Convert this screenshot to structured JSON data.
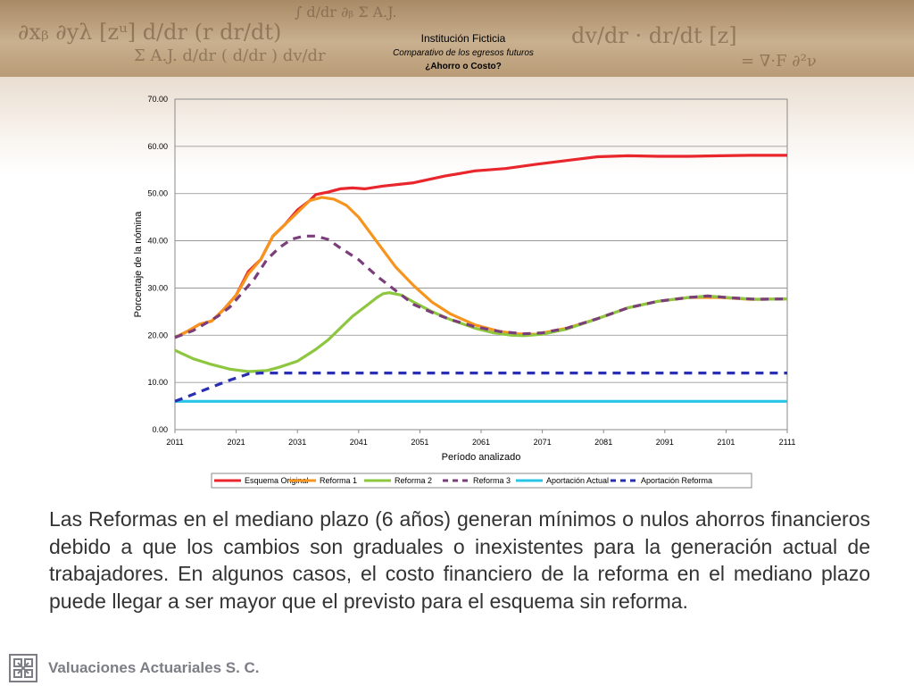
{
  "slide": {
    "paragraph": "Las Reformas en el mediano plazo (6 años) generan mínimos o nulos ahorros financieros debido a que los cambios son graduales o inexistentes para la generación actual de trabajadores. En algunos casos, el costo financiero de la reforma en el mediano plazo puede llegar a ser mayor que el previsto para el esquema sin reforma.",
    "footer_company": "Valuaciones Actuariales S. C.",
    "banner_formulas": [
      "∂xᵦ ∂yλ [zᵘ]  d/dr (r dr/dt)",
      "Σ A.J.  d/dr ( d/dr ) dv/dr",
      "∫ d/dr  ∂ᵦ  Σ A.J.",
      "dv/dr · dr/dt [z]",
      "= ∇·F  ∂²ν"
    ]
  },
  "chart_data": {
    "type": "line",
    "title": "Institución Ficticia",
    "subtitle": "Comparativo de los egresos futuros",
    "subtitle2": "¿Ahorro o Costo?",
    "xlabel": "Período analizado",
    "ylabel": "Porcentaje de la nómina",
    "xlim": [
      2011,
      2111
    ],
    "ylim": [
      0,
      70
    ],
    "x_ticks": [
      "2011",
      "2021",
      "2031",
      "2041",
      "2051",
      "2061",
      "2071",
      "2081",
      "2091",
      "2101",
      "2111"
    ],
    "y_ticks": [
      "0.00",
      "10.00",
      "20.00",
      "30.00",
      "40.00",
      "50.00",
      "60.00",
      "70.00"
    ],
    "grid": true,
    "legend_position": "bottom",
    "series": [
      {
        "name": "Esquema Original",
        "color": "#e8262b",
        "dash": false,
        "points": [
          [
            2011,
            19.5
          ],
          [
            2013,
            20.8
          ],
          [
            2015,
            22.3
          ],
          [
            2017,
            23.0
          ],
          [
            2019,
            25.5
          ],
          [
            2021,
            28.5
          ],
          [
            2023,
            33.5
          ],
          [
            2025,
            36.0
          ],
          [
            2026,
            38.5
          ],
          [
            2027,
            41.0
          ],
          [
            2029,
            43.5
          ],
          [
            2031,
            46.5
          ],
          [
            2033,
            48.5
          ],
          [
            2034,
            49.8
          ],
          [
            2036,
            50.3
          ],
          [
            2038,
            51.0
          ],
          [
            2040,
            51.2
          ],
          [
            2042,
            51.0
          ],
          [
            2045,
            51.6
          ],
          [
            2050,
            52.3
          ],
          [
            2055,
            53.7
          ],
          [
            2060,
            54.8
          ],
          [
            2065,
            55.3
          ],
          [
            2070,
            56.2
          ],
          [
            2075,
            57.0
          ],
          [
            2080,
            57.8
          ],
          [
            2085,
            58.0
          ],
          [
            2090,
            57.9
          ],
          [
            2095,
            57.9
          ],
          [
            2100,
            58.0
          ],
          [
            2105,
            58.1
          ],
          [
            2111,
            58.1
          ]
        ]
      },
      {
        "name": "Reforma 1",
        "color": "#f7941d",
        "dash": false,
        "points": [
          [
            2011,
            19.5
          ],
          [
            2013,
            20.8
          ],
          [
            2015,
            22.3
          ],
          [
            2017,
            23.0
          ],
          [
            2019,
            25.5
          ],
          [
            2021,
            28.5
          ],
          [
            2023,
            33.0
          ],
          [
            2025,
            36.0
          ],
          [
            2027,
            41.0
          ],
          [
            2029,
            43.5
          ],
          [
            2031,
            46.0
          ],
          [
            2033,
            48.5
          ],
          [
            2035,
            49.2
          ],
          [
            2037,
            48.8
          ],
          [
            2039,
            47.5
          ],
          [
            2041,
            45.0
          ],
          [
            2043,
            41.5
          ],
          [
            2045,
            38.0
          ],
          [
            2047,
            34.5
          ],
          [
            2050,
            30.5
          ],
          [
            2053,
            27.0
          ],
          [
            2056,
            24.5
          ],
          [
            2060,
            22.2
          ],
          [
            2064,
            20.8
          ],
          [
            2067,
            20.3
          ],
          [
            2070,
            20.2
          ],
          [
            2075,
            21.5
          ],
          [
            2080,
            23.5
          ],
          [
            2085,
            25.8
          ],
          [
            2090,
            27.2
          ],
          [
            2095,
            28.0
          ],
          [
            2100,
            28.0
          ],
          [
            2105,
            27.6
          ],
          [
            2111,
            27.7
          ]
        ]
      },
      {
        "name": "Reforma 2",
        "color": "#8dc63f",
        "dash": false,
        "points": [
          [
            2011,
            16.8
          ],
          [
            2014,
            15.0
          ],
          [
            2017,
            13.8
          ],
          [
            2020,
            12.8
          ],
          [
            2023,
            12.3
          ],
          [
            2026,
            12.5
          ],
          [
            2028,
            13.2
          ],
          [
            2031,
            14.5
          ],
          [
            2034,
            17.0
          ],
          [
            2036,
            19.0
          ],
          [
            2038,
            21.5
          ],
          [
            2040,
            24.0
          ],
          [
            2042,
            26.0
          ],
          [
            2044,
            28.0
          ],
          [
            2045,
            28.8
          ],
          [
            2046,
            29.0
          ],
          [
            2048,
            28.5
          ],
          [
            2050,
            27.0
          ],
          [
            2053,
            25.0
          ],
          [
            2056,
            23.3
          ],
          [
            2060,
            21.5
          ],
          [
            2063,
            20.5
          ],
          [
            2066,
            20.0
          ],
          [
            2068,
            19.9
          ],
          [
            2071,
            20.2
          ],
          [
            2075,
            21.3
          ],
          [
            2080,
            23.5
          ],
          [
            2085,
            25.8
          ],
          [
            2090,
            27.2
          ],
          [
            2095,
            28.0
          ],
          [
            2098,
            28.3
          ],
          [
            2102,
            27.9
          ],
          [
            2106,
            27.6
          ],
          [
            2111,
            27.7
          ]
        ]
      },
      {
        "name": "Reforma 3",
        "color": "#7a3e7a",
        "dash": true,
        "points": [
          [
            2011,
            19.5
          ],
          [
            2014,
            21.0
          ],
          [
            2016,
            22.5
          ],
          [
            2018,
            24.0
          ],
          [
            2020,
            26.0
          ],
          [
            2022,
            29.0
          ],
          [
            2024,
            32.0
          ],
          [
            2026,
            36.0
          ],
          [
            2028,
            38.5
          ],
          [
            2030,
            40.3
          ],
          [
            2032,
            41.0
          ],
          [
            2034,
            41.0
          ],
          [
            2036,
            40.3
          ],
          [
            2038,
            38.5
          ],
          [
            2041,
            36.0
          ],
          [
            2044,
            32.5
          ],
          [
            2047,
            29.5
          ],
          [
            2050,
            26.5
          ],
          [
            2053,
            24.8
          ],
          [
            2056,
            23.3
          ],
          [
            2060,
            21.8
          ],
          [
            2064,
            20.8
          ],
          [
            2068,
            20.3
          ],
          [
            2071,
            20.5
          ],
          [
            2075,
            21.5
          ],
          [
            2080,
            23.5
          ],
          [
            2085,
            25.8
          ],
          [
            2090,
            27.2
          ],
          [
            2095,
            28.0
          ],
          [
            2098,
            28.3
          ],
          [
            2102,
            27.9
          ],
          [
            2106,
            27.6
          ],
          [
            2111,
            27.7
          ]
        ]
      },
      {
        "name": "Aportación Actual",
        "color": "#29c5e6",
        "dash": false,
        "points": [
          [
            2011,
            6.0
          ],
          [
            2111,
            6.0
          ]
        ]
      },
      {
        "name": "Aportación Reforma",
        "color": "#2a2fb2",
        "dash": true,
        "points": [
          [
            2011,
            6.0
          ],
          [
            2014,
            7.5
          ],
          [
            2017,
            9.0
          ],
          [
            2020,
            10.5
          ],
          [
            2023,
            11.8
          ],
          [
            2025,
            12.0
          ],
          [
            2111,
            12.0
          ]
        ]
      }
    ]
  }
}
